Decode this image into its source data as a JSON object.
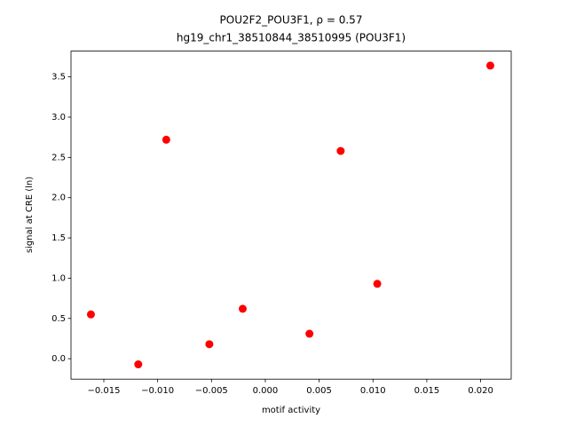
{
  "chart_data": {
    "type": "scatter",
    "title": "POU2F2_POU3F1, ρ = 0.57",
    "subtitle": "hg19_chr1_38510844_38510995 (POU3F1)",
    "x_label": "motif activity",
    "y_label": "signal at CRE (ln)",
    "color": "#ff0000",
    "x": [
      -0.0162,
      -0.0118,
      -0.0092,
      -0.0052,
      -0.0021,
      0.0041,
      0.007,
      0.0104,
      0.0209
    ],
    "y": [
      0.55,
      -0.07,
      2.72,
      0.18,
      0.62,
      0.31,
      2.58,
      0.93,
      3.64
    ],
    "xlim": [
      -0.01805,
      0.02284
    ],
    "ylim": [
      -0.254,
      3.82
    ],
    "xticks": [
      {
        "value": -0.015,
        "label": "−0.015"
      },
      {
        "value": -0.01,
        "label": "−0.010"
      },
      {
        "value": -0.005,
        "label": "−0.005"
      },
      {
        "value": 0,
        "label": "0.000"
      },
      {
        "value": 0.005,
        "label": "0.005"
      },
      {
        "value": 0.01,
        "label": "0.010"
      },
      {
        "value": 0.015,
        "label": "0.015"
      },
      {
        "value": 0.02,
        "label": "0.020"
      }
    ],
    "yticks": [
      {
        "value": 0,
        "label": "0.0"
      },
      {
        "value": 0.5,
        "label": "0.5"
      },
      {
        "value": 1,
        "label": "1.0"
      },
      {
        "value": 1.5,
        "label": "1.5"
      },
      {
        "value": 2,
        "label": "2.0"
      },
      {
        "value": 2.5,
        "label": "2.5"
      },
      {
        "value": 3,
        "label": "3.0"
      },
      {
        "value": 3.5,
        "label": "3.5"
      }
    ]
  }
}
